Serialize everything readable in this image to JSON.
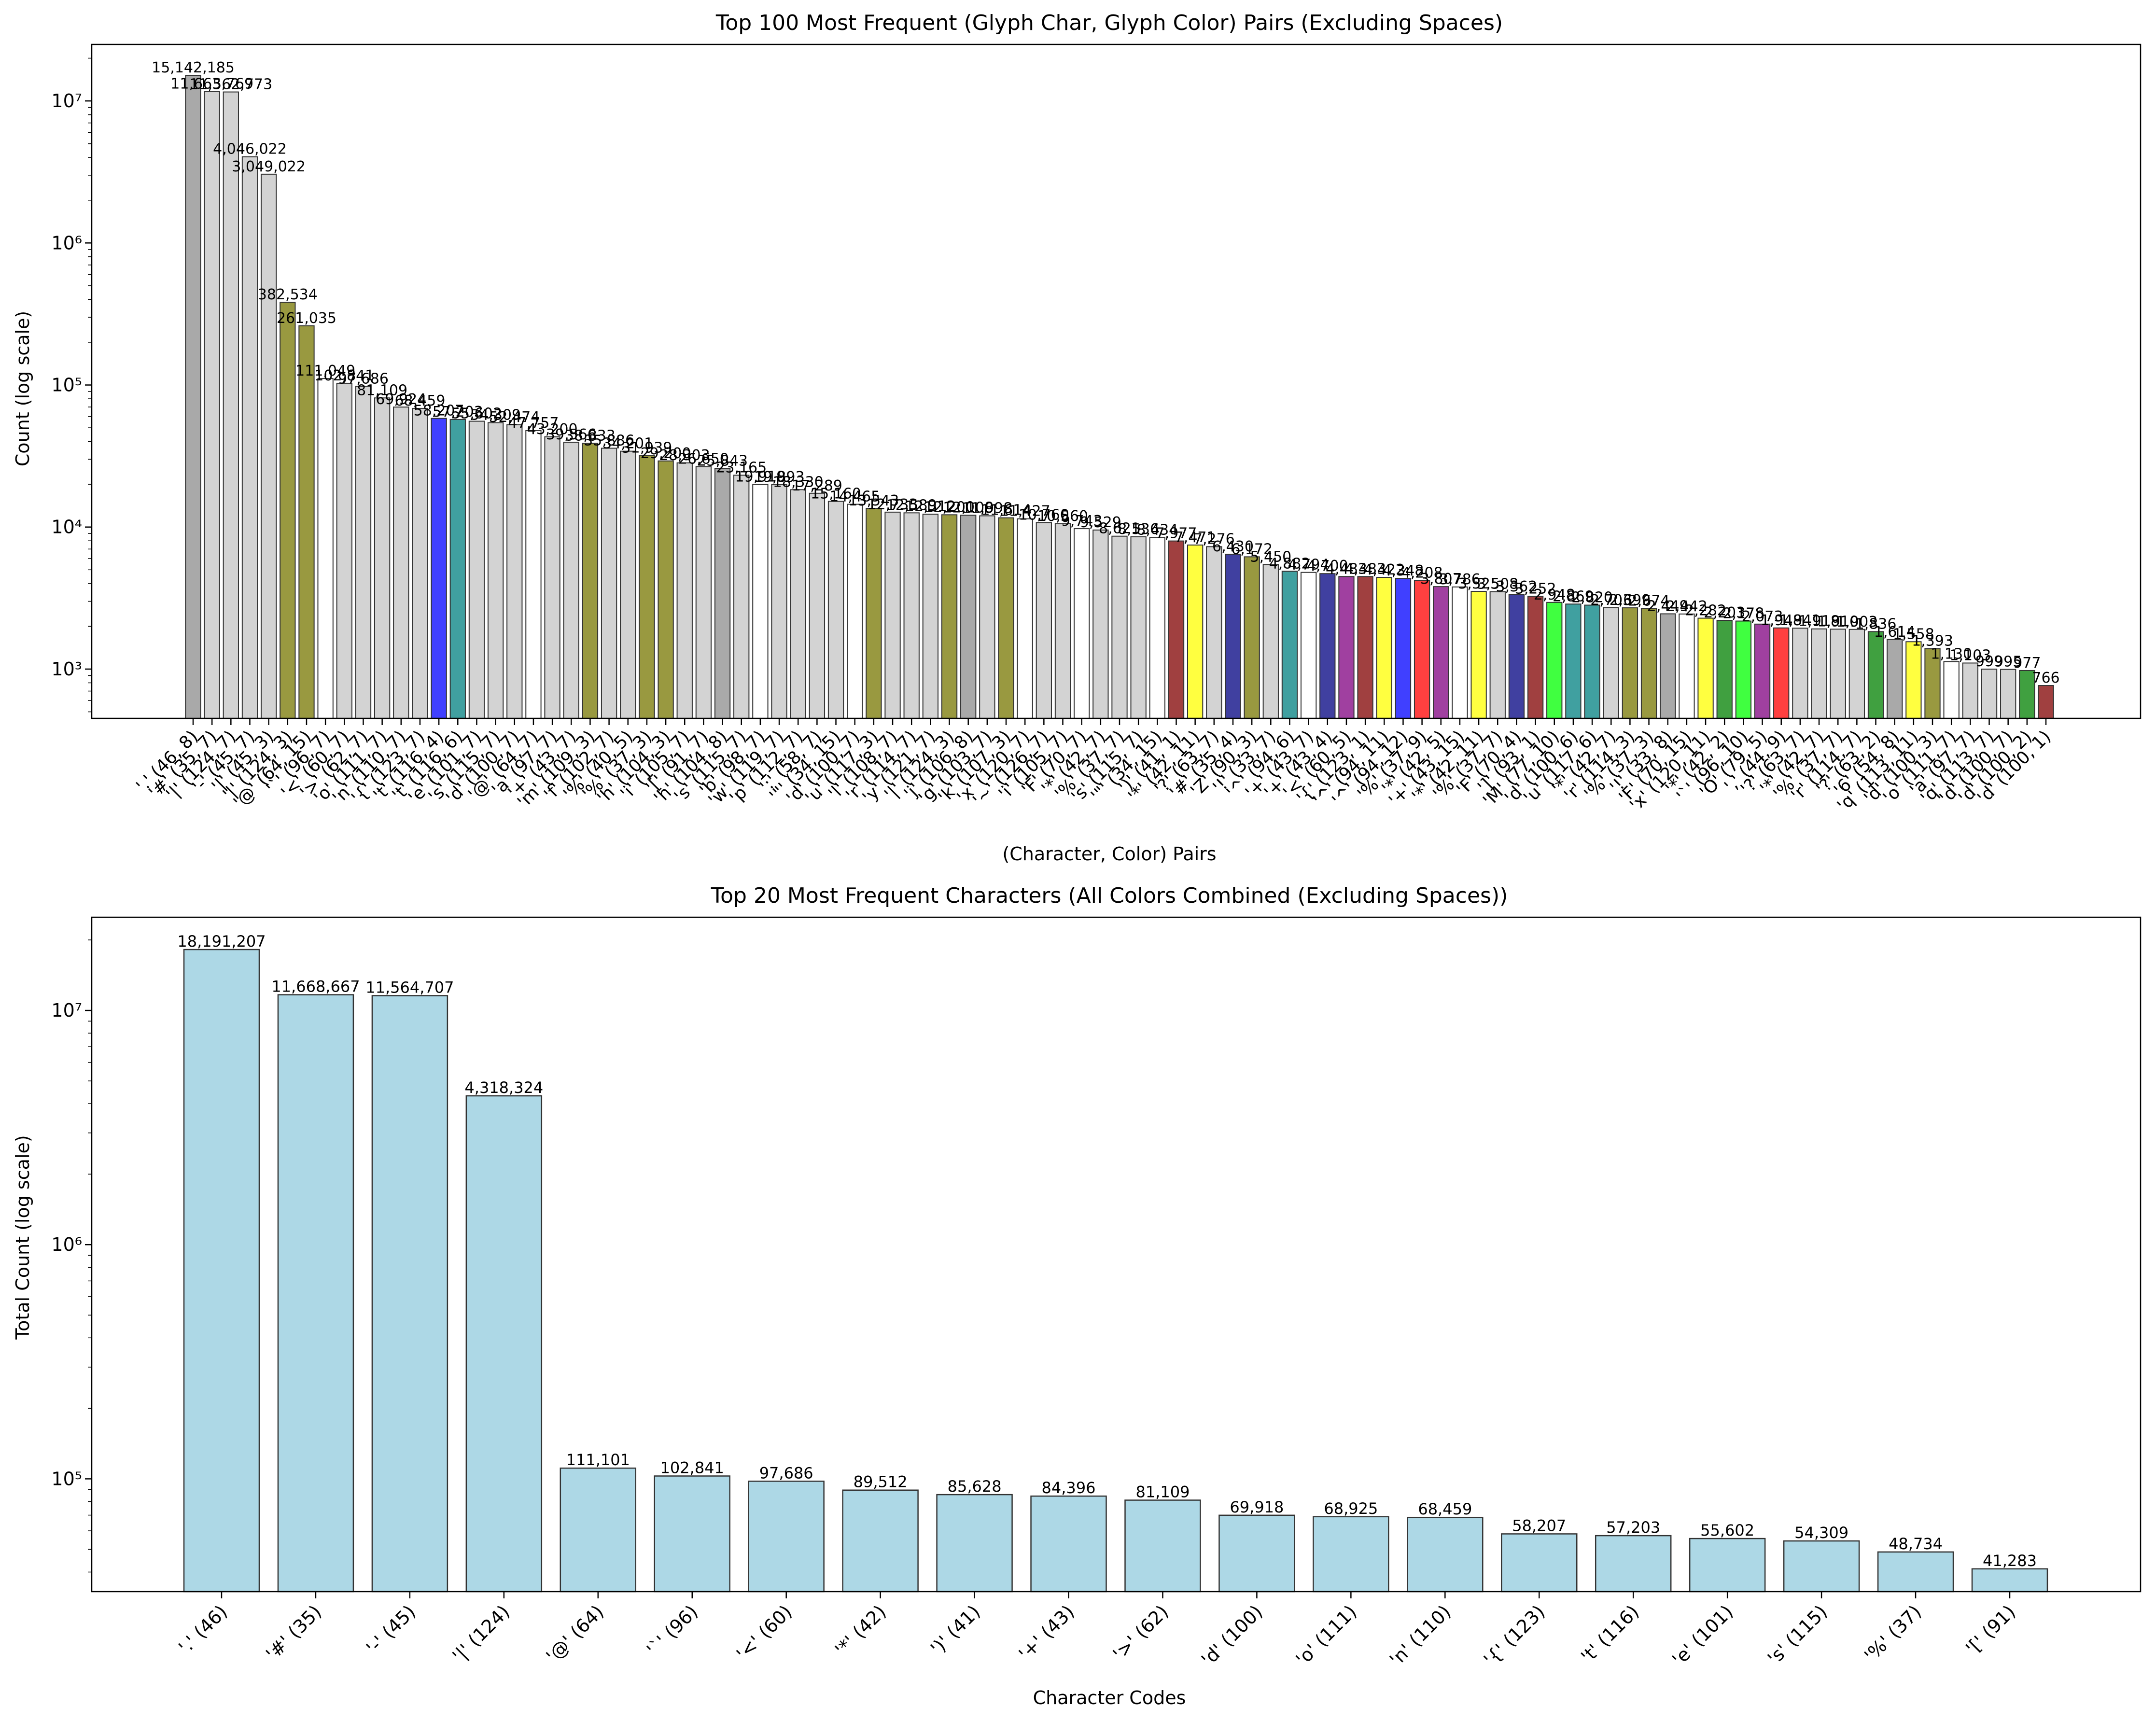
{
  "chart_data": [
    {
      "type": "bar",
      "title": "Top 100 Most Frequent (Glyph Char, Glyph Color) Pairs (Excluding Spaces)",
      "xlabel": "(Character, Color) Pairs",
      "ylabel": "Count (log scale)",
      "yscale": "log",
      "ylim": [
        450,
        25000000
      ],
      "y_ticks": [
        1000,
        10000,
        100000,
        1000000,
        10000000
      ],
      "y_tick_labels": [
        "10³",
        "10⁴",
        "10⁵",
        "10⁶",
        "10⁷"
      ],
      "grid": false,
      "legend": "none",
      "bars": [
        {
          "label": "'.' (46, 8)",
          "value": 15142185,
          "value_label": "15,142,185",
          "color": "#a9a9a9"
        },
        {
          "label": "'#' (35, 7)",
          "value": 11663769,
          "value_label": "11,663,769",
          "color": "#d3d3d3"
        },
        {
          "label": "'|' (124, 7)",
          "value": 11562773,
          "value_label": "11,562,773",
          "color": "#d3d3d3"
        },
        {
          "label": "'-' (45, 7)",
          "value": 4046022,
          "value_label": "4,046,022",
          "color": "#d3d3d3"
        },
        {
          "label": "'|' (45, 3)",
          "value": 3049022,
          "value_label": "3,049,022",
          "color": "#d3d3d3"
        },
        {
          "label": "'|' (124, 3)",
          "value": 382534,
          "value_label": "382,534",
          "color": "#999940"
        },
        {
          "label": "'@' (64, 15)",
          "value": 261035,
          "value_label": "261,035",
          "color": "#999940"
        },
        {
          "label": "'`' (96, 7)",
          "value": 111049,
          "value_label": "111,049",
          "color": "#ffffff"
        },
        {
          "label": "'<' (60, 7)",
          "value": 102841,
          "value_label": "102,841",
          "color": "#d3d3d3"
        },
        {
          "label": "'>' (62, 7)",
          "value": 97686,
          "value_label": "97,686",
          "color": "#d3d3d3"
        },
        {
          "label": "'o' (111, 7)",
          "value": 81109,
          "value_label": "81,109",
          "color": "#d3d3d3"
        },
        {
          "label": "'n' (110, 7)",
          "value": 69924,
          "value_label": "69,924",
          "color": "#d3d3d3"
        },
        {
          "label": "'{' (123, 7)",
          "value": 68459,
          "value_label": "68,459",
          "color": "#d3d3d3"
        },
        {
          "label": "'t' (116, 4)",
          "value": 58207,
          "value_label": "58,207",
          "color": "#4040ff"
        },
        {
          "label": "'t' (116, 6)",
          "value": 57203,
          "value_label": "57,203",
          "color": "#40a0a0"
        },
        {
          "label": "'e' (101, 7)",
          "value": 55602,
          "value_label": "55,602",
          "color": "#d3d3d3"
        },
        {
          "label": "'s' (115, 7)",
          "value": 54309,
          "value_label": "54,309",
          "color": "#d3d3d3"
        },
        {
          "label": "'d' (100, 7)",
          "value": 52474,
          "value_label": "52,474",
          "color": "#d3d3d3"
        },
        {
          "label": "'@' (64, 7)",
          "value": 47757,
          "value_label": "47,757",
          "color": "#ffffff"
        },
        {
          "label": "'a' (97, 7)",
          "value": 43200,
          "value_label": "43,200",
          "color": "#d3d3d3"
        },
        {
          "label": "'+' (43, 7)",
          "value": 39566,
          "value_label": "39,566",
          "color": "#d3d3d3"
        },
        {
          "label": "'m' (109, 3)",
          "value": 38833,
          "value_label": "38,833",
          "color": "#999940"
        },
        {
          "label": "'f' (102, 7)",
          "value": 35886,
          "value_label": "35,886",
          "color": "#d3d3d3"
        },
        {
          "label": "'%' (40, 5)",
          "value": 34201,
          "value_label": "34,201",
          "color": "#d3d3d3"
        },
        {
          "label": "'%' (37, 3)",
          "value": 31939,
          "value_label": "31,939",
          "color": "#999940"
        },
        {
          "label": "'h' (104, 3)",
          "value": 29200,
          "value_label": "29,200",
          "color": "#999940"
        },
        {
          "label": "'i' (105, 7)",
          "value": 28303,
          "value_label": "28,303",
          "color": "#d3d3d3"
        },
        {
          "label": "'[' (91, 7)",
          "value": 26650,
          "value_label": "26,650",
          "color": "#d3d3d3"
        },
        {
          "label": "'h' (104, 8)",
          "value": 25843,
          "value_label": "25,843",
          "color": "#a9a9a9"
        },
        {
          "label": "'s' (115, 7)",
          "value": 23165,
          "value_label": "23,165",
          "color": "#d3d3d3"
        },
        {
          "label": "'b' (98, 7)",
          "value": 19919,
          "value_label": "19,919",
          "color": "#ffffff"
        },
        {
          "label": "'w' (119, 7)",
          "value": 19893,
          "value_label": "19,893",
          "color": "#d3d3d3"
        },
        {
          "label": "'p' (112, 7)",
          "value": 18330,
          "value_label": "18,330",
          "color": "#d3d3d3"
        },
        {
          "label": "':' (58, 7)",
          "value": 17289,
          "value_label": "17,289",
          "color": "#d3d3d3"
        },
        {
          "label": "'\"' (34, 15)",
          "value": 15160,
          "value_label": "15,160",
          "color": "#d3d3d3"
        },
        {
          "label": "'d' (100, 7)",
          "value": 14465,
          "value_label": "14,465",
          "color": "#ffffff"
        },
        {
          "label": "'u' (117, 3)",
          "value": 13543,
          "value_label": "13,543",
          "color": "#999940"
        },
        {
          "label": "'l' (108, 7)",
          "value": 12733,
          "value_label": "12,733",
          "color": "#d3d3d3"
        },
        {
          "label": "'r' (114, 7)",
          "value": 12589,
          "value_label": "12,589",
          "color": "#d3d3d3"
        },
        {
          "label": "'y' (121, 7)",
          "value": 12312,
          "value_label": "12,312",
          "color": "#d3d3d3"
        },
        {
          "label": "'|' (124, 3)",
          "value": 12200,
          "value_label": "12,200",
          "color": "#999940"
        },
        {
          "label": "'j' (106, 8)",
          "value": 12108,
          "value_label": "12,108",
          "color": "#a9a9a9"
        },
        {
          "label": "'g' (103, 7)",
          "value": 11998,
          "value_label": "11,998",
          "color": "#d3d3d3"
        },
        {
          "label": "'k' (107, 3)",
          "value": 11614,
          "value_label": "11,614",
          "color": "#999940"
        },
        {
          "label": "'x' (120, 7)",
          "value": 11427,
          "value_label": "11,427",
          "color": "#ffffff"
        },
        {
          "label": "'~' (126, 7)",
          "value": 10760,
          "value_label": "10,760",
          "color": "#d3d3d3"
        },
        {
          "label": "'i' (105, 7)",
          "value": 10560,
          "value_label": "10,560",
          "color": "#d3d3d3"
        },
        {
          "label": "'F' (70, 7)",
          "value": 9743,
          "value_label": "9,743",
          "color": "#ffffff"
        },
        {
          "label": "'*' (42, 7)",
          "value": 9529,
          "value_label": "9,529",
          "color": "#d3d3d3"
        },
        {
          "label": "'%' (37, 7)",
          "value": 8621,
          "value_label": "8,621",
          "color": "#d3d3d3"
        },
        {
          "label": "'s' (115, 7)",
          "value": 8536,
          "value_label": "8,536",
          "color": "#d3d3d3"
        },
        {
          "label": "'\"' (34, 15)",
          "value": 8434,
          "value_label": "8,434",
          "color": "#ffffff"
        },
        {
          "label": "')' (41, 1)",
          "value": 7977,
          "value_label": "7,977",
          "color": "#a04040"
        },
        {
          "label": "'*' (42, 11)",
          "value": 7471,
          "value_label": "7,471",
          "color": "#ffff40"
        },
        {
          "label": "'?' (63, 7)",
          "value": 7276,
          "value_label": "7,276",
          "color": "#d3d3d3"
        },
        {
          "label": "'#' (35, 4)",
          "value": 6430,
          "value_label": "6,430",
          "color": "#4040a0"
        },
        {
          "label": "'Z' (90, 3)",
          "value": 6172,
          "value_label": "6,172",
          "color": "#999940"
        },
        {
          "label": "'!' (33, 7)",
          "value": 5450,
          "value_label": "5,450",
          "color": "#d3d3d3"
        },
        {
          "label": "'^' (94, 6)",
          "value": 4882,
          "value_label": "4,882",
          "color": "#40a0a0"
        },
        {
          "label": "'+' (43, 7)",
          "value": 4794,
          "value_label": "4,794",
          "color": "#ffffff"
        },
        {
          "label": "'+' (43, 4)",
          "value": 4700,
          "value_label": "4,700",
          "color": "#4040a0"
        },
        {
          "label": "'<' (60, 5)",
          "value": 4483,
          "value_label": "4,483",
          "color": "#a040a0"
        },
        {
          "label": "'{' (123, 1)",
          "value": 4483,
          "value_label": "4,483",
          "color": "#a04040"
        },
        {
          "label": "'^' (94, 11)",
          "value": 4422,
          "value_label": "4,422",
          "color": "#ffff40"
        },
        {
          "label": "'^' (94, 12)",
          "value": 4348,
          "value_label": "4,348",
          "color": "#4040ff"
        },
        {
          "label": "'%' (37, 9)",
          "value": 4208,
          "value_label": "4,208",
          "color": "#ff4040"
        },
        {
          "label": "'*' (42, 5)",
          "value": 3807,
          "value_label": "3,807",
          "color": "#a040a0"
        },
        {
          "label": "'+' (43, 15)",
          "value": 3786,
          "value_label": "3,786",
          "color": "#ffffff"
        },
        {
          "label": "'*' (42, 11)",
          "value": 3525,
          "value_label": "3,525",
          "color": "#ffff40"
        },
        {
          "label": "'%' (37, 7)",
          "value": 3508,
          "value_label": "3,508",
          "color": "#d3d3d3"
        },
        {
          "label": "'F' (70, 4)",
          "value": 3362,
          "value_label": "3,362",
          "color": "#4040a0"
        },
        {
          "label": "']' (93, 1)",
          "value": 3252,
          "value_label": "3,252",
          "color": "#a04040"
        },
        {
          "label": "'M' (77, 10)",
          "value": 2948,
          "value_label": "2,948",
          "color": "#40ff40"
        },
        {
          "label": "'d' (100, 6)",
          "value": 2869,
          "value_label": "2,869",
          "color": "#40a0a0"
        },
        {
          "label": "'u' (117, 6)",
          "value": 2820,
          "value_label": "2,820",
          "color": "#40a0a0"
        },
        {
          "label": "'*' (42, 7)",
          "value": 2703,
          "value_label": "2,703",
          "color": "#d3d3d3"
        },
        {
          "label": "'r' (114, 3)",
          "value": 2699,
          "value_label": "2,699",
          "color": "#999940"
        },
        {
          "label": "'%' (37, 3)",
          "value": 2674,
          "value_label": "2,674",
          "color": "#999940"
        },
        {
          "label": "'!' (33, 8)",
          "value": 2449,
          "value_label": "2,449",
          "color": "#a9a9a9"
        },
        {
          "label": "'F' (70, 15)",
          "value": 2442,
          "value_label": "2,442",
          "color": "#ffffff"
        },
        {
          "label": "'x' (120, 11)",
          "value": 2282,
          "value_label": "2,282",
          "color": "#ffff40"
        },
        {
          "label": "'*' (42, 2)",
          "value": 2203,
          "value_label": "2,203",
          "color": "#40a040"
        },
        {
          "label": "'`' (96, 10)",
          "value": 2178,
          "value_label": "2,178",
          "color": "#40ff40"
        },
        {
          "label": "'O' (79, 5)",
          "value": 2073,
          "value_label": "2,073",
          "color": "#a040a0"
        },
        {
          "label": "',' (44, 9)",
          "value": 1948,
          "value_label": "1,948",
          "color": "#ff4040"
        },
        {
          "label": "'?' (63, 7)",
          "value": 1941,
          "value_label": "1,941",
          "color": "#d3d3d3"
        },
        {
          "label": "'*' (42, 7)",
          "value": 1918,
          "value_label": "1,918",
          "color": "#d3d3d3"
        },
        {
          "label": "'%' (37, 7)",
          "value": 1910,
          "value_label": "1,910",
          "color": "#d3d3d3"
        },
        {
          "label": "'r' (114, 7)",
          "value": 1903,
          "value_label": "1,903",
          "color": "#d3d3d3"
        },
        {
          "label": "'?' (63, 2)",
          "value": 1836,
          "value_label": "1,836",
          "color": "#40a040"
        },
        {
          "label": "'6' (54, 8)",
          "value": 1614,
          "value_label": "1,614",
          "color": "#a9a9a9"
        },
        {
          "label": "'q' (113, 11)",
          "value": 1558,
          "value_label": "1,558",
          "color": "#ffff40"
        },
        {
          "label": "'d' (100, 3)",
          "value": 1393,
          "value_label": "1,393",
          "color": "#999940"
        },
        {
          "label": "'o' (111, 7)",
          "value": 1130,
          "value_label": "1,130",
          "color": "#ffffff"
        },
        {
          "label": "'a' (97, 7)",
          "value": 1103,
          "value_label": "1,103",
          "color": "#d3d3d3"
        },
        {
          "label": "'q' (113, 7)",
          "value": 999,
          "value_label": "999",
          "color": "#d3d3d3"
        },
        {
          "label": "'d' (100, 7)",
          "value": 995,
          "value_label": "995",
          "color": "#d3d3d3"
        },
        {
          "label": "'d' (100, 2)",
          "value": 977,
          "value_label": "977",
          "color": "#40a040"
        },
        {
          "label": "'d' (100, 1)",
          "value": 766,
          "value_label": "766",
          "color": "#a04040"
        }
      ]
    },
    {
      "type": "bar",
      "title": "Top 20 Most Frequent Characters (All Colors Combined (Excluding Spaces))",
      "xlabel": "Character Codes",
      "ylabel": "Total Count (log scale)",
      "yscale": "log",
      "ylim": [
        33000,
        25000000
      ],
      "y_ticks": [
        100000,
        1000000,
        10000000
      ],
      "y_tick_labels": [
        "10⁵",
        "10⁶",
        "10⁷"
      ],
      "grid": false,
      "legend": "none",
      "bar_color": "#add8e6",
      "categories": [
        "'.' (46)",
        "'#' (35)",
        "'-' (45)",
        "'|' (124)",
        "'@' (64)",
        "'`' (96)",
        "'<' (60)",
        "'*' (42)",
        "')' (41)",
        "'+' (43)",
        "'>' (62)",
        "'d' (100)",
        "'o' (111)",
        "'n' (110)",
        "'{' (123)",
        "'t' (116)",
        "'e' (101)",
        "'s' (115)",
        "'%' (37)",
        "'[' (91)"
      ],
      "values": [
        18191207,
        11668667,
        11564707,
        4318324,
        111101,
        102841,
        97686,
        89512,
        85628,
        84396,
        81109,
        69918,
        68925,
        68459,
        58207,
        57203,
        55602,
        54309,
        48734,
        41283
      ],
      "value_labels": [
        "18,191,207",
        "11,668,667",
        "11,564,707",
        "4,318,324",
        "111,101",
        "102,841",
        "97,686",
        "89,512",
        "85,628",
        "84,396",
        "81,109",
        "69,918",
        "68,925",
        "68,459",
        "58,207",
        "57,203",
        "55,602",
        "54,309",
        "48,734",
        "41,283"
      ]
    }
  ]
}
